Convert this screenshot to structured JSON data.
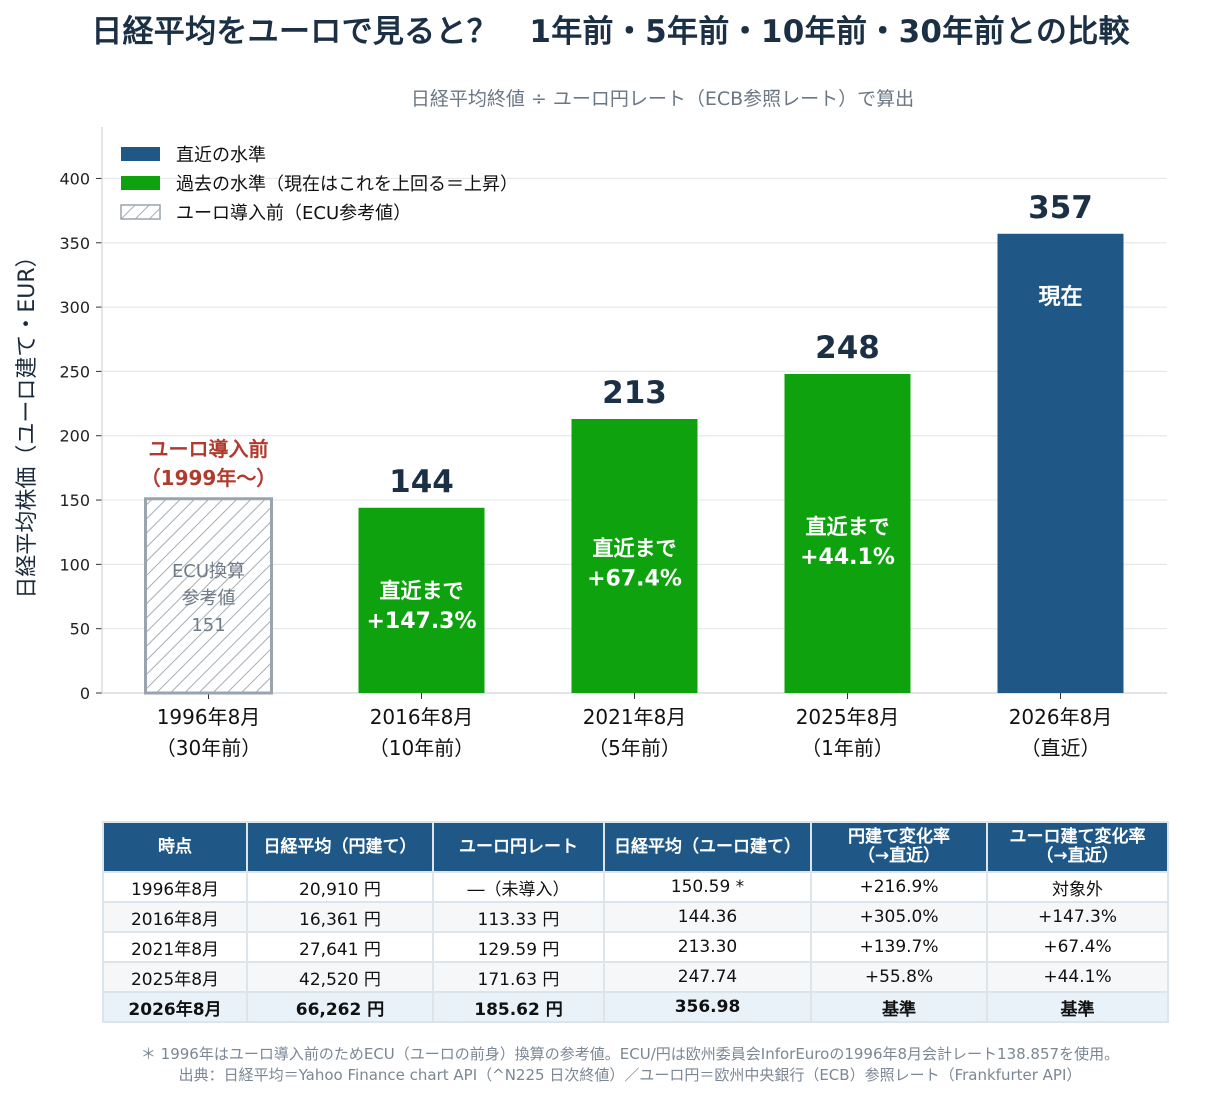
{
  "title": "日経平均をユーロで見ると？　1年前・5年前・10年前・30年前との比較",
  "subtitle": "日経平均終値 ÷ ユーロ円レート（ECB参照レート）で算出",
  "colors": {
    "current": "#1f5886",
    "past": "#0ea30e",
    "hatch": "#a3adb8",
    "pre_euro_note": "#b03a2e"
  },
  "chart_data": {
    "type": "bar",
    "ylabel": "日経平均株価（ユーロ建て・EUR）",
    "ylim": [
      0,
      440
    ],
    "yticks": [
      0,
      50,
      100,
      150,
      200,
      250,
      300,
      350,
      400
    ],
    "grid": true,
    "legend": [
      {
        "label": "直近の水準",
        "style": "current"
      },
      {
        "label": "過去の水準（現在はこれを上回る＝上昇）",
        "style": "past"
      },
      {
        "label": "ユーロ導入前（ECU参考値）",
        "style": "hatch"
      }
    ],
    "legend_position": "top-left",
    "categories": [
      [
        "1996年8月",
        "（30年前）"
      ],
      [
        "2016年8月",
        "（10年前）"
      ],
      [
        "2021年8月",
        "（5年前）"
      ],
      [
        "2025年8月",
        "（1年前）"
      ],
      [
        "2026年8月",
        "（直近）"
      ]
    ],
    "values": [
      151,
      144,
      213,
      248,
      357
    ],
    "styles": [
      "hatch",
      "past",
      "past",
      "past",
      "current"
    ],
    "top_labels": [
      "",
      "144",
      "213",
      "248",
      "357"
    ],
    "inner_labels": [
      [
        "ECU換算",
        "参考値",
        "151"
      ],
      [
        "直近まで",
        "+147.3%"
      ],
      [
        "直近まで",
        "+67.4%"
      ],
      [
        "直近まで",
        "+44.1%"
      ],
      [
        "現在"
      ]
    ],
    "annotation": [
      "ユーロ導入前",
      "（1999年〜）"
    ]
  },
  "table": {
    "headers": [
      [
        "時点"
      ],
      [
        "日経平均（円建て）"
      ],
      [
        "ユーロ円レート"
      ],
      [
        "日経平均（ユーロ建て）"
      ],
      [
        "円建て変化率",
        "（→直近）"
      ],
      [
        "ユーロ建て変化率",
        "（→直近）"
      ]
    ],
    "rows": [
      [
        "1996年8月",
        "20,910 円",
        "―（未導入）",
        "150.59 *",
        "+216.9%",
        "対象外"
      ],
      [
        "2016年8月",
        "16,361 円",
        "113.33 円",
        "144.36",
        "+305.0%",
        "+147.3%"
      ],
      [
        "2021年8月",
        "27,641 円",
        "129.59 円",
        "213.30",
        "+139.7%",
        "+67.4%"
      ],
      [
        "2025年8月",
        "42,520 円",
        "171.63 円",
        "247.74",
        "+55.8%",
        "+44.1%"
      ],
      [
        "2026年8月",
        "66,262 円",
        "185.62 円",
        "356.98",
        "基準",
        "基準"
      ]
    ]
  },
  "footnotes": [
    "＊ 1996年はユーロ導入前のためECU（ユーロの前身）換算の参考値。ECU/円は欧州委員会InforEuroの1996年8月会計レート138.857を使用。",
    "出典：日経平均＝Yahoo Finance chart API（^N225 日次終値）／ユーロ円＝欧州中央銀行（ECB）参照レート（Frankfurter API）"
  ]
}
